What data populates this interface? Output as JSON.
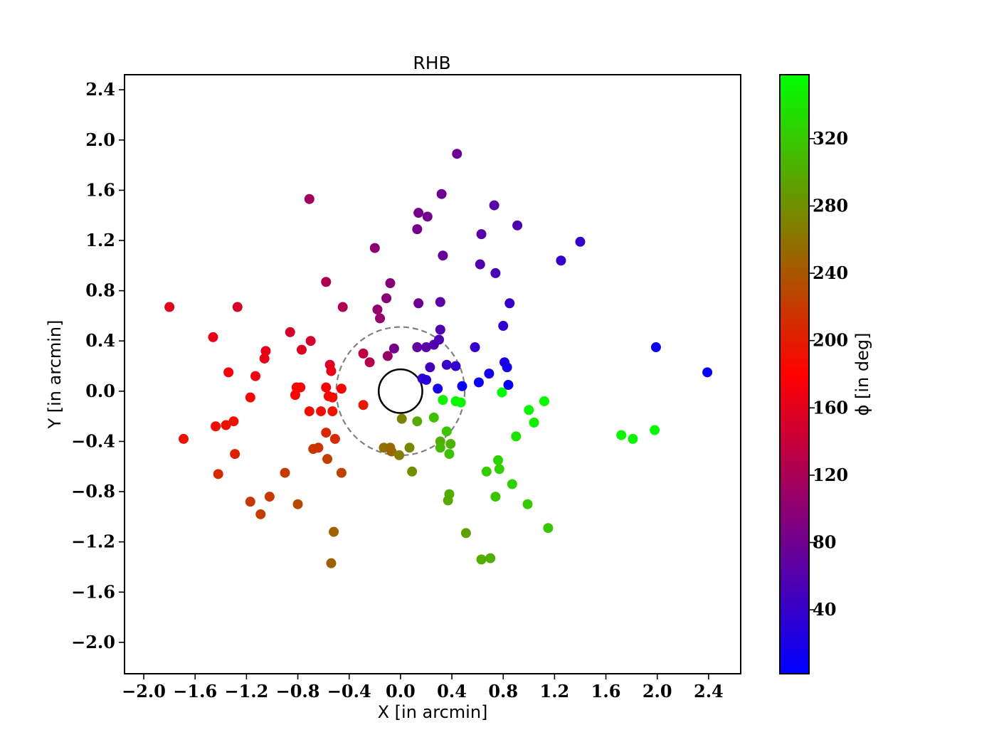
{
  "chart_data": {
    "type": "scatter",
    "title": "RHB",
    "xlabel": "X [in arcmin]",
    "ylabel": "Y [in arcmin]",
    "xlim": [
      -2.15,
      2.65
    ],
    "ylim": [
      -2.25,
      2.52
    ],
    "xticks": [
      -2.0,
      -1.6,
      -1.2,
      -0.8,
      -0.4,
      0.0,
      0.4,
      0.8,
      1.2,
      1.6,
      2.0,
      2.4
    ],
    "yticks": [
      -2.0,
      -1.6,
      -1.2,
      -0.8,
      -0.4,
      0.0,
      0.4,
      0.8,
      1.2,
      1.6,
      2.0,
      2.4
    ],
    "xtick_labels": [
      "−2.0",
      "−1.6",
      "−1.2",
      "−0.8",
      "−0.4",
      "0.0",
      "0.4",
      "0.8",
      "1.2",
      "1.6",
      "2.0",
      "2.4"
    ],
    "ytick_labels": [
      "−2.0",
      "−1.6",
      "−1.2",
      "−0.8",
      "−0.4",
      "0.0",
      "0.4",
      "0.8",
      "1.2",
      "1.6",
      "2.0",
      "2.4"
    ],
    "grid": false,
    "colorbar": {
      "label": "ϕ [in deg]",
      "range": [
        2,
        358
      ],
      "ticks": [
        40,
        80,
        120,
        160,
        200,
        240,
        280,
        320
      ],
      "tick_labels": [
        "40",
        "80",
        "120",
        "160",
        "200",
        "240",
        "280",
        "320"
      ],
      "colormap": [
        "#0000ff",
        "#ff0000",
        "#00ff00"
      ]
    },
    "overlays": [
      {
        "shape": "circle",
        "center": [
          0,
          0
        ],
        "radius": 0.17,
        "style": "solid",
        "color": "#000000"
      },
      {
        "shape": "circle",
        "center": [
          0,
          0
        ],
        "radius": 0.5,
        "style": "dashed",
        "color": "#808080"
      }
    ],
    "columns": [
      "x",
      "y",
      "phi"
    ],
    "points": [
      [
        0.44,
        1.89,
        77
      ],
      [
        -0.71,
        1.53,
        115
      ],
      [
        0.32,
        1.57,
        78
      ],
      [
        0.14,
        1.42,
        84
      ],
      [
        0.21,
        1.39,
        81
      ],
      [
        0.13,
        1.29,
        84
      ],
      [
        0.73,
        1.48,
        64
      ],
      [
        0.91,
        1.32,
        56
      ],
      [
        0.63,
        1.25,
        63
      ],
      [
        -0.2,
        1.14,
        101
      ],
      [
        1.4,
        1.19,
        40
      ],
      [
        1.25,
        1.04,
        40
      ],
      [
        0.33,
        1.08,
        73
      ],
      [
        0.62,
        1.01,
        59
      ],
      [
        0.74,
        0.94,
        52
      ],
      [
        -0.58,
        0.87,
        124
      ],
      [
        -0.08,
        0.86,
        96
      ],
      [
        -0.11,
        0.74,
        98
      ],
      [
        0.14,
        0.7,
        79
      ],
      [
        0.31,
        0.71,
        66
      ],
      [
        -0.45,
        0.67,
        124
      ],
      [
        -0.18,
        0.65,
        106
      ],
      [
        -0.16,
        0.58,
        107
      ],
      [
        -1.8,
        0.67,
        160
      ],
      [
        -1.27,
        0.67,
        152
      ],
      [
        0.85,
        0.7,
        40
      ],
      [
        0.8,
        0.52,
        35
      ],
      [
        0.31,
        0.49,
        58
      ],
      [
        -0.86,
        0.47,
        150
      ],
      [
        -1.46,
        0.43,
        164
      ],
      [
        -0.7,
        0.4,
        150
      ],
      [
        -1.05,
        0.32,
        162
      ],
      [
        -0.77,
        0.33,
        157
      ],
      [
        -1.06,
        0.26,
        164
      ],
      [
        -0.05,
        0.34,
        82
      ],
      [
        0.13,
        0.35,
        70
      ],
      [
        0.2,
        0.35,
        65
      ],
      [
        0.26,
        0.37,
        60
      ],
      [
        0.3,
        0.41,
        55
      ],
      [
        0.58,
        0.35,
        38
      ],
      [
        -0.29,
        0.3,
        134
      ],
      [
        -0.1,
        0.28,
        109
      ],
      [
        -0.24,
        0.23,
        128
      ],
      [
        -0.55,
        0.21,
        155
      ],
      [
        1.99,
        0.35,
        10
      ],
      [
        0.81,
        0.23,
        20
      ],
      [
        0.23,
        0.19,
        48
      ],
      [
        0.36,
        0.21,
        42
      ],
      [
        0.43,
        0.2,
        38
      ],
      [
        -1.34,
        0.15,
        173
      ],
      [
        -0.54,
        0.16,
        164
      ],
      [
        -1.13,
        0.12,
        171
      ],
      [
        0.83,
        0.19,
        17
      ],
      [
        0.69,
        0.14,
        15
      ],
      [
        0.17,
        0.1,
        35
      ],
      [
        0.2,
        0.09,
        30
      ],
      [
        2.39,
        0.15,
        5
      ],
      [
        -0.78,
        0.03,
        178
      ],
      [
        -0.81,
        0.03,
        180
      ],
      [
        -0.58,
        0.03,
        176
      ],
      [
        -0.46,
        0.02,
        180
      ],
      [
        0.29,
        0.02,
        20
      ],
      [
        0.48,
        0.04,
        10
      ],
      [
        0.61,
        0.07,
        8
      ],
      [
        0.84,
        0.05,
        6
      ],
      [
        -1.17,
        -0.05,
        183
      ],
      [
        -0.82,
        -0.03,
        185
      ],
      [
        -0.56,
        -0.04,
        188
      ],
      [
        -0.53,
        -0.05,
        190
      ],
      [
        0.33,
        -0.07,
        348
      ],
      [
        0.43,
        -0.08,
        351
      ],
      [
        0.47,
        -0.09,
        352
      ],
      [
        0.79,
        -0.01,
        355
      ],
      [
        -0.29,
        -0.11,
        197
      ],
      [
        -0.71,
        -0.16,
        188
      ],
      [
        -0.62,
        -0.16,
        190
      ],
      [
        -0.53,
        -0.16,
        195
      ],
      [
        1.12,
        -0.08,
        354
      ],
      [
        1.0,
        -0.15,
        350
      ],
      [
        0.01,
        -0.22,
        270
      ],
      [
        0.13,
        -0.24,
        298
      ],
      [
        1.04,
        -0.25,
        345
      ],
      [
        -1.69,
        -0.38,
        193
      ],
      [
        -1.3,
        -0.24,
        192
      ],
      [
        -1.44,
        -0.28,
        192
      ],
      [
        -1.36,
        -0.27,
        192
      ],
      [
        0.26,
        -0.21,
        315
      ],
      [
        0.36,
        -0.32,
        318
      ],
      [
        1.72,
        -0.35,
        352
      ],
      [
        1.81,
        -0.38,
        352
      ],
      [
        1.98,
        -0.31,
        354
      ],
      [
        0.9,
        -0.36,
        338
      ],
      [
        -0.58,
        -0.33,
        207
      ],
      [
        -0.51,
        -0.38,
        210
      ],
      [
        -0.64,
        -0.45,
        215
      ],
      [
        -0.68,
        -0.46,
        218
      ],
      [
        -1.29,
        -0.5,
        202
      ],
      [
        0.31,
        -0.4,
        300
      ],
      [
        0.39,
        -0.42,
        305
      ],
      [
        0.31,
        -0.45,
        310
      ],
      [
        -0.13,
        -0.45,
        258
      ],
      [
        -0.08,
        -0.45,
        253
      ],
      [
        -0.07,
        -0.48,
        252
      ],
      [
        0.07,
        -0.45,
        275
      ],
      [
        -0.01,
        -0.51,
        266
      ],
      [
        0.38,
        -0.5,
        315
      ],
      [
        -0.57,
        -0.54,
        222
      ],
      [
        -0.46,
        -0.65,
        225
      ],
      [
        -1.42,
        -0.66,
        208
      ],
      [
        -0.9,
        -0.65,
        220
      ],
      [
        0.09,
        -0.64,
        280
      ],
      [
        0.67,
        -0.64,
        322
      ],
      [
        0.76,
        -0.55,
        328
      ],
      [
        0.77,
        -0.62,
        325
      ],
      [
        0.38,
        -0.82,
        300
      ],
      [
        0.37,
        -0.87,
        298
      ],
      [
        0.74,
        -0.84,
        318
      ],
      [
        0.87,
        -0.74,
        325
      ],
      [
        -1.02,
        -0.84,
        220
      ],
      [
        -1.17,
        -0.88,
        218
      ],
      [
        -1.09,
        -0.98,
        222
      ],
      [
        -0.8,
        -0.9,
        230
      ],
      [
        0.99,
        -0.9,
        320
      ],
      [
        0.51,
        -1.13,
        292
      ],
      [
        -0.52,
        -1.12,
        246
      ],
      [
        1.15,
        -1.09,
        318
      ],
      [
        0.63,
        -1.34,
        300
      ],
      [
        0.7,
        -1.33,
        302
      ],
      [
        -0.54,
        -1.37,
        248
      ]
    ]
  }
}
